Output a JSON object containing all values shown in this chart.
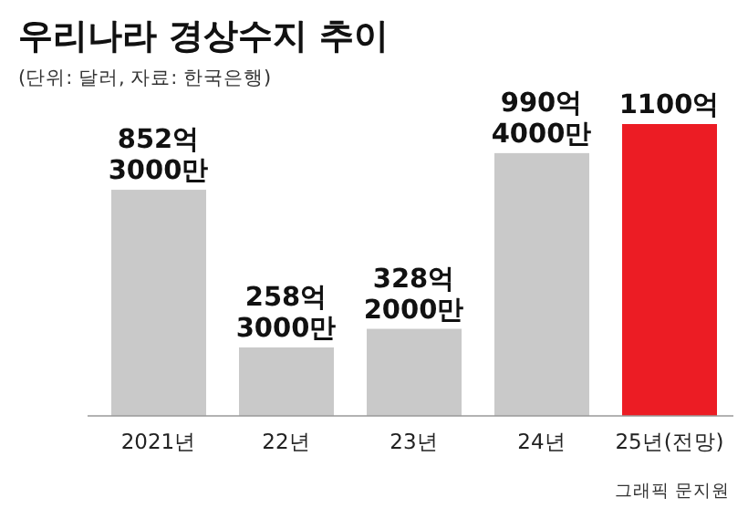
{
  "chart_data": {
    "type": "bar",
    "title": "우리나라 경상수지 추이",
    "subtitle": "(단위: 달러, 자료: 한국은행)",
    "categories": [
      "2021년",
      "22년",
      "23년",
      "24년",
      "25년(전망)"
    ],
    "values": [
      852.3,
      258.3,
      328.2,
      990.4,
      1100
    ],
    "colors": [
      "#c9c9c9",
      "#c9c9c9",
      "#c9c9c9",
      "#c9c9c9",
      "#ec1c24"
    ],
    "value_labels": [
      "852억\n3000만",
      "258억\n3000만",
      "328억\n2000만",
      "990억\n4000만",
      "1100억"
    ],
    "annotations": [
      "그래픽 문지원"
    ]
  }
}
